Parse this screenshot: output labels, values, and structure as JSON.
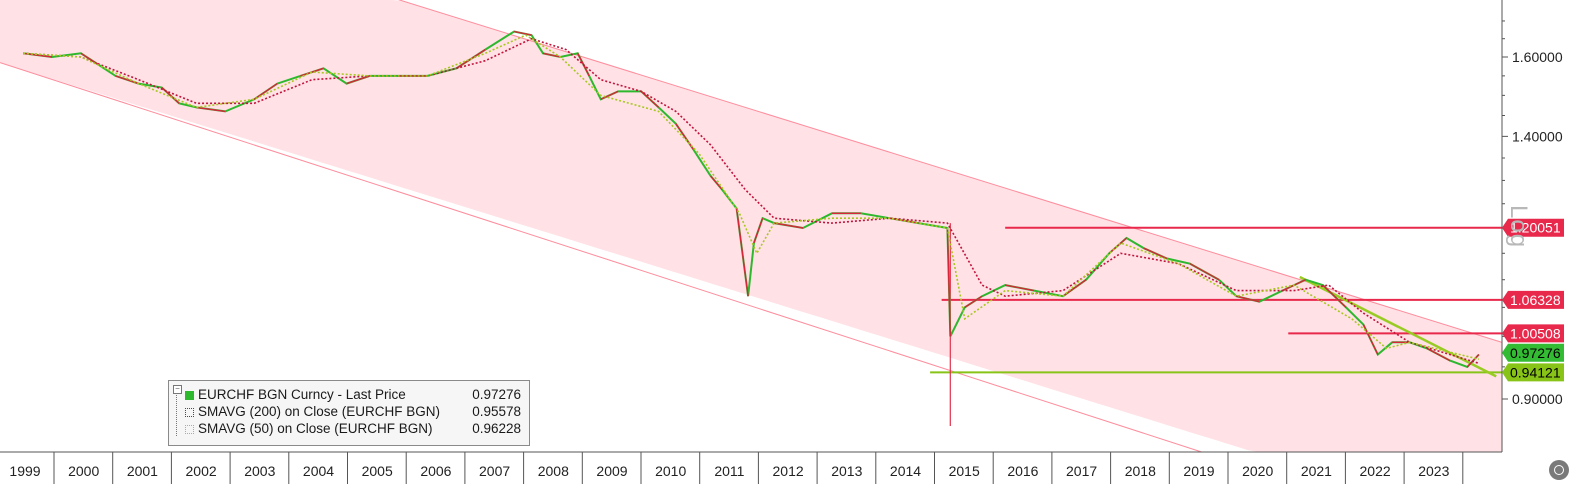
{
  "chart_data": {
    "type": "line",
    "instrument": "EURCHF BGN Curncy",
    "scale": "log",
    "scale_label": "Log",
    "ylim": [
      0.85,
      1.75
    ],
    "y_ticks": [
      {
        "value": 0.9,
        "label": "0.90000"
      },
      {
        "value": 1.4,
        "label": "1.40000"
      },
      {
        "value": 1.6,
        "label": "1.60000"
      }
    ],
    "x_labels": [
      "1999",
      "2000",
      "2001",
      "2002",
      "2003",
      "2004",
      "2005",
      "2006",
      "2007",
      "2008",
      "2009",
      "2010",
      "2011",
      "2012",
      "2013",
      "2014",
      "2015",
      "2016",
      "2017",
      "2018",
      "2019",
      "2020",
      "2021",
      "2022",
      "2023"
    ],
    "series": [
      {
        "name": "EURCHF BGN Curncy - Last Price",
        "color": "#2eb82e",
        "points": [
          [
            1999.0,
            1.61
          ],
          [
            1999.5,
            1.6
          ],
          [
            2000.0,
            1.61
          ],
          [
            2000.3,
            1.58
          ],
          [
            2000.6,
            1.55
          ],
          [
            2001.0,
            1.53
          ],
          [
            2001.4,
            1.52
          ],
          [
            2001.7,
            1.48
          ],
          [
            2002.0,
            1.47
          ],
          [
            2002.5,
            1.46
          ],
          [
            2003.0,
            1.49
          ],
          [
            2003.4,
            1.53
          ],
          [
            2003.8,
            1.55
          ],
          [
            2004.2,
            1.57
          ],
          [
            2004.6,
            1.53
          ],
          [
            2005.0,
            1.55
          ],
          [
            2005.5,
            1.55
          ],
          [
            2006.0,
            1.55
          ],
          [
            2006.5,
            1.57
          ],
          [
            2007.0,
            1.62
          ],
          [
            2007.5,
            1.67
          ],
          [
            2007.8,
            1.66
          ],
          [
            2008.0,
            1.61
          ],
          [
            2008.3,
            1.6
          ],
          [
            2008.6,
            1.61
          ],
          [
            2008.8,
            1.55
          ],
          [
            2009.0,
            1.49
          ],
          [
            2009.3,
            1.51
          ],
          [
            2009.7,
            1.51
          ],
          [
            2010.0,
            1.47
          ],
          [
            2010.3,
            1.43
          ],
          [
            2010.6,
            1.37
          ],
          [
            2010.9,
            1.31
          ],
          [
            2011.1,
            1.28
          ],
          [
            2011.35,
            1.24
          ],
          [
            2011.55,
            1.07
          ],
          [
            2011.65,
            1.17
          ],
          [
            2011.8,
            1.22
          ],
          [
            2012.0,
            1.21
          ],
          [
            2012.5,
            1.2
          ],
          [
            2013.0,
            1.23
          ],
          [
            2013.5,
            1.23
          ],
          [
            2014.0,
            1.22
          ],
          [
            2014.5,
            1.21
          ],
          [
            2015.0,
            1.2
          ],
          [
            2015.05,
            1.0
          ],
          [
            2015.3,
            1.05
          ],
          [
            2015.6,
            1.07
          ],
          [
            2016.0,
            1.09
          ],
          [
            2016.5,
            1.08
          ],
          [
            2017.0,
            1.07
          ],
          [
            2017.4,
            1.1
          ],
          [
            2017.8,
            1.15
          ],
          [
            2018.1,
            1.18
          ],
          [
            2018.4,
            1.16
          ],
          [
            2018.8,
            1.14
          ],
          [
            2019.2,
            1.13
          ],
          [
            2019.7,
            1.1
          ],
          [
            2020.0,
            1.07
          ],
          [
            2020.4,
            1.06
          ],
          [
            2020.8,
            1.08
          ],
          [
            2021.2,
            1.1
          ],
          [
            2021.5,
            1.09
          ],
          [
            2021.9,
            1.05
          ],
          [
            2022.2,
            1.02
          ],
          [
            2022.45,
            0.97
          ],
          [
            2022.7,
            0.99
          ],
          [
            2023.0,
            0.99
          ],
          [
            2023.3,
            0.98
          ],
          [
            2023.7,
            0.96
          ],
          [
            2024.0,
            0.95
          ],
          [
            2024.2,
            0.97
          ]
        ]
      },
      {
        "name": "SMAVG (200)  on Close (EURCHF BGN)",
        "color": "#c0143c",
        "dashed": true,
        "points": [
          [
            1999.0,
            1.61
          ],
          [
            2000.0,
            1.6
          ],
          [
            2001.0,
            1.54
          ],
          [
            2002.0,
            1.48
          ],
          [
            2003.0,
            1.48
          ],
          [
            2004.0,
            1.54
          ],
          [
            2005.0,
            1.55
          ],
          [
            2006.0,
            1.55
          ],
          [
            2007.0,
            1.59
          ],
          [
            2007.8,
            1.65
          ],
          [
            2008.4,
            1.62
          ],
          [
            2009.0,
            1.54
          ],
          [
            2009.7,
            1.51
          ],
          [
            2010.3,
            1.46
          ],
          [
            2010.9,
            1.38
          ],
          [
            2011.5,
            1.28
          ],
          [
            2012.0,
            1.22
          ],
          [
            2013.0,
            1.21
          ],
          [
            2014.0,
            1.22
          ],
          [
            2015.0,
            1.21
          ],
          [
            2015.6,
            1.09
          ],
          [
            2016.0,
            1.07
          ],
          [
            2017.0,
            1.08
          ],
          [
            2018.0,
            1.15
          ],
          [
            2019.0,
            1.13
          ],
          [
            2020.0,
            1.08
          ],
          [
            2021.0,
            1.08
          ],
          [
            2021.6,
            1.09
          ],
          [
            2022.2,
            1.04
          ],
          [
            2023.0,
            0.99
          ],
          [
            2024.2,
            0.95578
          ]
        ]
      },
      {
        "name": "SMAVG (50)  on Close (EURCHF BGN)",
        "color": "#a8c820",
        "dashed": true,
        "points": [
          [
            1999.0,
            1.61
          ],
          [
            2000.0,
            1.6
          ],
          [
            2001.0,
            1.53
          ],
          [
            2002.0,
            1.47
          ],
          [
            2003.0,
            1.49
          ],
          [
            2004.0,
            1.56
          ],
          [
            2005.0,
            1.55
          ],
          [
            2006.0,
            1.55
          ],
          [
            2007.0,
            1.61
          ],
          [
            2007.7,
            1.66
          ],
          [
            2008.3,
            1.6
          ],
          [
            2009.0,
            1.5
          ],
          [
            2010.0,
            1.46
          ],
          [
            2010.7,
            1.36
          ],
          [
            2011.4,
            1.23
          ],
          [
            2011.7,
            1.15
          ],
          [
            2012.0,
            1.21
          ],
          [
            2013.0,
            1.22
          ],
          [
            2014.0,
            1.22
          ],
          [
            2015.0,
            1.2
          ],
          [
            2015.3,
            1.03
          ],
          [
            2016.0,
            1.08
          ],
          [
            2017.0,
            1.07
          ],
          [
            2018.0,
            1.17
          ],
          [
            2019.0,
            1.13
          ],
          [
            2020.0,
            1.07
          ],
          [
            2021.0,
            1.09
          ],
          [
            2022.0,
            1.03
          ],
          [
            2022.6,
            0.98
          ],
          [
            2023.0,
            0.99
          ],
          [
            2024.2,
            0.96228
          ]
        ]
      }
    ],
    "levels": [
      {
        "value": 1.20051,
        "label": "1.20051",
        "color": "#e8294c",
        "kind": "resistance"
      },
      {
        "value": 1.06328,
        "label": "1.06328",
        "color": "#e8294c",
        "kind": "resistance"
      },
      {
        "value": 1.00508,
        "label": "1.00508",
        "color": "#e8294c",
        "kind": "resistance"
      },
      {
        "value": 0.97276,
        "label": "0.97276",
        "color": "#33bb33",
        "kind": "last-price"
      },
      {
        "value": 0.94121,
        "label": "0.94121",
        "color": "#88c418",
        "kind": "support"
      }
    ],
    "channel": {
      "color": "#ffe1e6",
      "line_color": "#ff8c9c"
    },
    "trendline_color": "#99cc22"
  },
  "legend": {
    "rows": [
      {
        "name": "EURCHF BGN Curncy - Last Price",
        "value": "0.97276",
        "color": "#2eb82e"
      },
      {
        "name": "SMAVG (200)  on Close (EURCHF BGN)",
        "value": "0.95578",
        "color": "#c0143c"
      },
      {
        "name": "SMAVG (50)  on Close (EURCHF BGN)",
        "value": "0.96228",
        "color": "#a8c820"
      }
    ]
  }
}
